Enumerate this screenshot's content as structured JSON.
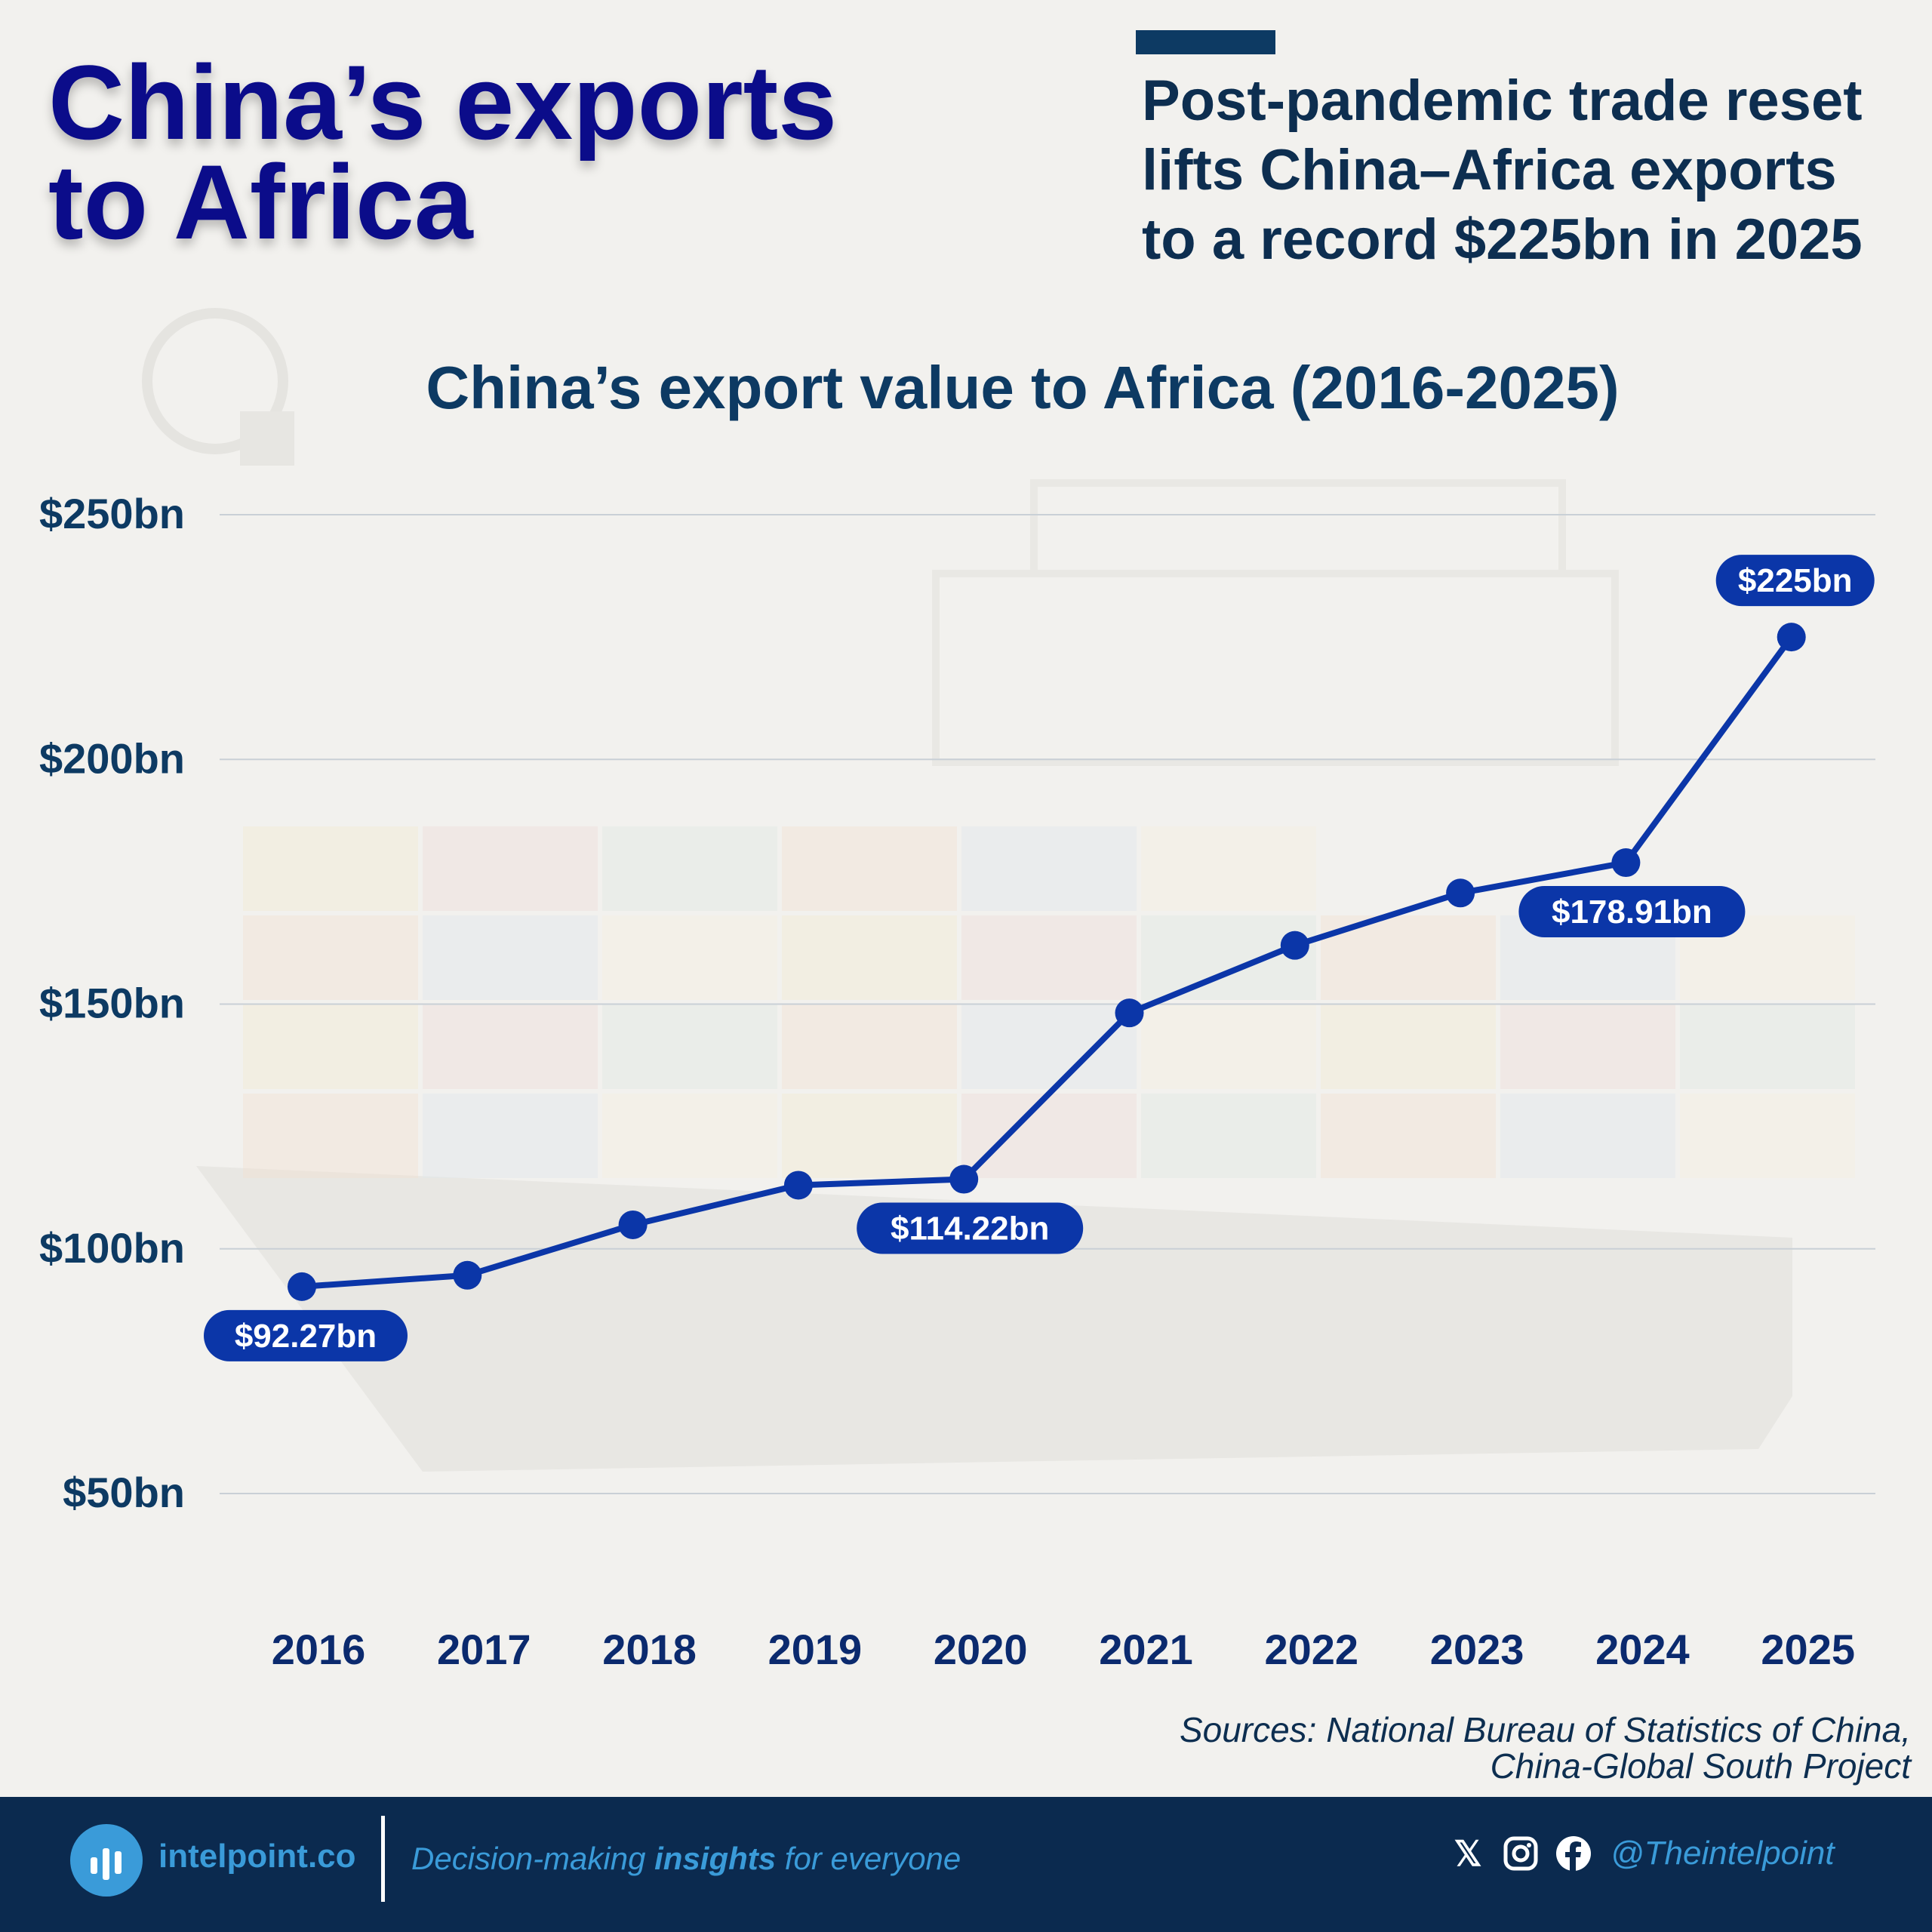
{
  "header": {
    "title_line1": "China’s exports",
    "title_line2": "to Africa",
    "subtitle_lines": [
      "Post-pandemic trade reset",
      "lifts China–Africa exports",
      "to a record $225bn in 2025"
    ]
  },
  "chart_data": {
    "type": "line",
    "title": "China’s export value to Africa (2016-2025)",
    "xlabel": "",
    "ylabel": "",
    "categories": [
      "2016",
      "2017",
      "2018",
      "2019",
      "2020",
      "2021",
      "2022",
      "2023",
      "2024",
      "2025"
    ],
    "series": [
      {
        "name": "Export value ($bn)",
        "values": [
          92.27,
          94.6,
          104.9,
          113.0,
          114.22,
          148.2,
          162.0,
          172.7,
          178.91,
          225
        ]
      }
    ],
    "ylim": [
      50,
      250
    ],
    "yticks": [
      50,
      100,
      150,
      200,
      250
    ],
    "ytick_labels": [
      "$50bn",
      "$100bn",
      "$150bn",
      "$200bn",
      "$250bn"
    ],
    "grid": true,
    "data_labels": [
      {
        "index": 0,
        "text": "$92.27bn",
        "position": "below"
      },
      {
        "index": 4,
        "text": "$114.22bn",
        "position": "below"
      },
      {
        "index": 8,
        "text": "$178.91bn",
        "position": "below"
      },
      {
        "index": 9,
        "text": "$225bn",
        "position": "above"
      }
    ],
    "colors": {
      "line": "#0b36a8",
      "label_bg": "#0b36a8",
      "grid": "#c9d0d6",
      "axis_text": "#0d3a63",
      "x_text": "#0b2a6e"
    }
  },
  "sources": {
    "line1": "Sources: National Bureau of Statistics of China,",
    "line2": "China-Global South Project"
  },
  "footer": {
    "brand": "intelpoint.co",
    "tagline_pre": "Decision-making ",
    "tagline_bold": "insights",
    "tagline_post": " for everyone",
    "handle": "@Theintelpoint",
    "icons": [
      "x-icon",
      "instagram-icon",
      "facebook-icon"
    ]
  }
}
